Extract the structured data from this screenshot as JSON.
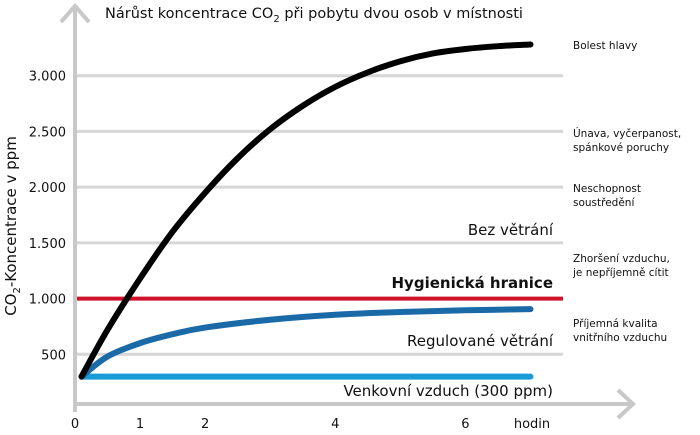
{
  "chart_data": {
    "type": "line",
    "title_parts": [
      "Nárůst koncentrace CO",
      "2",
      " při pobytu dvou osob v místnosti"
    ],
    "ylabel_parts": [
      "CO",
      "2",
      "-Koncentrace v ppm"
    ],
    "xlabel": "hodin",
    "xlim": [
      0,
      7.5
    ],
    "ylim": [
      0,
      3500
    ],
    "x_ticks": [
      0,
      1,
      2,
      4,
      6
    ],
    "x_tick_labels": [
      "0",
      "1",
      "2",
      "4",
      "6"
    ],
    "y_ticks": [
      500,
      1000,
      1500,
      2000,
      2500,
      3000
    ],
    "y_tick_labels": [
      "500",
      "1.000",
      "1.500",
      "2.000",
      "2.500",
      "3.000"
    ],
    "grid": true,
    "series": [
      {
        "name": "Bez větrání",
        "color": "#000000",
        "x": [
          0.1,
          0.5,
          1,
          1.5,
          2,
          2.5,
          3,
          3.5,
          4,
          4.5,
          5,
          5.5,
          6,
          6.5,
          7
        ],
        "y": [
          300,
          720,
          1180,
          1600,
          1950,
          2260,
          2520,
          2730,
          2900,
          3030,
          3130,
          3200,
          3240,
          3265,
          3280
        ]
      },
      {
        "name": "Regulované větrání",
        "color": "#1b6aa8",
        "x": [
          0.1,
          0.5,
          1,
          1.5,
          2,
          3,
          4,
          5,
          6,
          7
        ],
        "y": [
          300,
          480,
          600,
          680,
          740,
          810,
          855,
          880,
          895,
          905
        ]
      },
      {
        "name": "Venkovní vzduch (300 ppm)",
        "color": "#1a9ad6",
        "x": [
          0.1,
          7
        ],
        "y": [
          300,
          300
        ]
      }
    ],
    "reference_line": {
      "label": "Hygienická hranice",
      "value": 1000,
      "color": "#d0112b"
    },
    "annotations": [
      {
        "text": [
          "Bolest hlavy"
        ],
        "level": 3300
      },
      {
        "text": [
          "Únava, vyčerpanost,",
          "spánkové poruchy"
        ],
        "level": 2500
      },
      {
        "text": [
          "Neschopnost",
          "soustředění"
        ],
        "level": 2000
      },
      {
        "text": [
          "Zhoršení vzduchu,",
          "je nepříjemně cítit"
        ],
        "level": 1300
      },
      {
        "text": [
          "Příjemná kvalita",
          "vnitřního vzduchu"
        ],
        "level": 800
      }
    ]
  }
}
